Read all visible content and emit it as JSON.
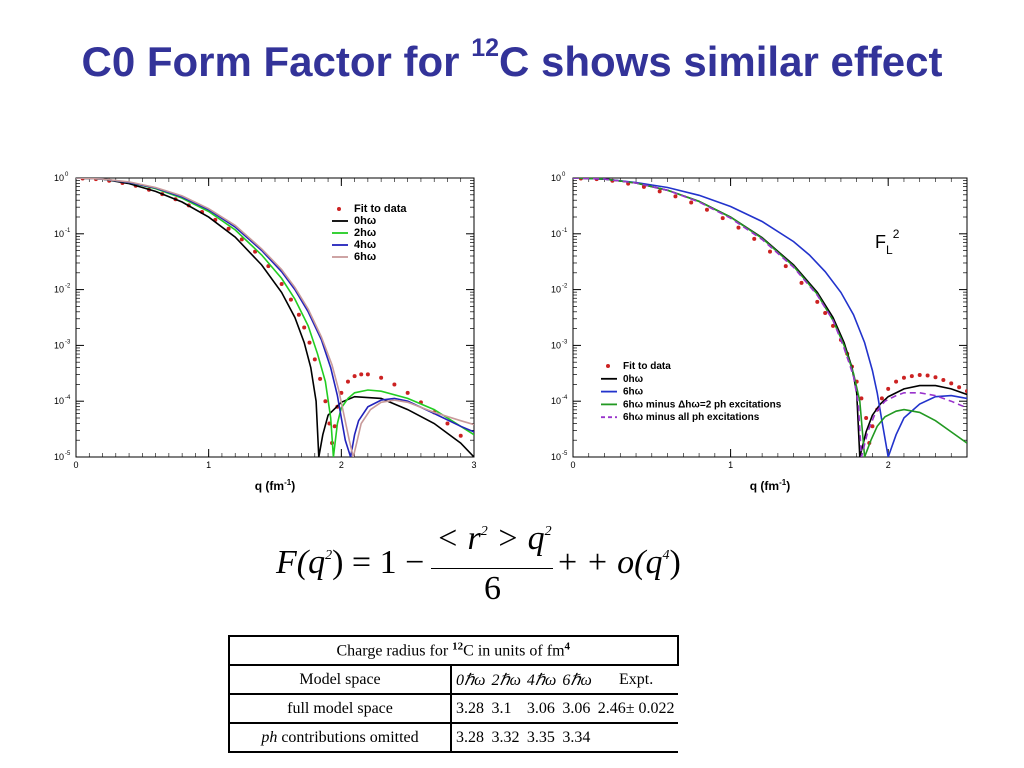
{
  "slide": {
    "title_main": "C0 Form Factor for ",
    "title_sup": "12",
    "title_rest": "C shows similar effect"
  },
  "colors": {
    "title": "#333399",
    "fit": "#cc2222",
    "0hw": "#000000",
    "2hw": "#22cc22",
    "4hw": "#2222bb",
    "6hw_left": "#c89a9a",
    "6hw_right": "#2233cc",
    "minus2": "#229922",
    "minusall": "#9933cc"
  },
  "chart_data": [
    {
      "type": "line",
      "xlabel": "q (fm",
      "xlabel_sup": "-1",
      "xlabel_end": ")",
      "ylabel": "",
      "xlim": [
        0,
        3
      ],
      "ylim_log10": [
        -5,
        0
      ],
      "y_scale": "log",
      "x_ticks": [
        "0",
        "1",
        "2",
        "3"
      ],
      "y_ticks": [
        "0",
        "-1",
        "-2",
        "-3",
        "-4",
        "-5"
      ],
      "y_tick_base": "10",
      "legend_position": "top-right",
      "legend": [
        "Fit to data",
        "0hω",
        "2hω",
        "4hω",
        "6hω"
      ],
      "series": [
        {
          "name": "Fit to data",
          "style": "dots",
          "color": "#cc2222",
          "x": [
            0.05,
            0.15,
            0.25,
            0.35,
            0.45,
            0.55,
            0.65,
            0.75,
            0.85,
            0.95,
            1.05,
            1.15,
            1.25,
            1.35,
            1.45,
            1.55,
            1.62,
            1.68,
            1.72,
            1.76,
            1.8,
            1.84,
            1.88,
            1.91,
            1.93,
            1.95,
            1.97,
            2.0,
            2.05,
            2.1,
            2.15,
            2.2,
            2.3,
            2.4,
            2.5,
            2.6,
            2.7,
            2.8,
            2.9
          ],
          "y": [
            -0.01,
            -0.02,
            -0.05,
            -0.09,
            -0.14,
            -0.21,
            -0.29,
            -0.38,
            -0.49,
            -0.61,
            -0.75,
            -0.91,
            -1.1,
            -1.32,
            -1.58,
            -1.9,
            -2.18,
            -2.45,
            -2.68,
            -2.95,
            -3.25,
            -3.6,
            -4.0,
            -4.4,
            -4.75,
            -4.45,
            -4.1,
            -3.85,
            -3.65,
            -3.55,
            -3.52,
            -3.52,
            -3.58,
            -3.7,
            -3.85,
            -4.02,
            -4.2,
            -4.4,
            -4.62
          ]
        },
        {
          "name": "0hω",
          "style": "line",
          "color": "#000000",
          "x": [
            0,
            0.2,
            0.4,
            0.6,
            0.8,
            1.0,
            1.2,
            1.4,
            1.55,
            1.65,
            1.72,
            1.77,
            1.81,
            1.83,
            1.86,
            1.9,
            2.0,
            2.1,
            2.3,
            2.5,
            2.7,
            2.9,
            3.0
          ],
          "y": [
            0,
            -0.02,
            -0.1,
            -0.24,
            -0.43,
            -0.7,
            -1.06,
            -1.56,
            -2.05,
            -2.5,
            -2.95,
            -3.4,
            -4.0,
            -5.0,
            -4.6,
            -4.25,
            -4.02,
            -3.92,
            -3.95,
            -4.15,
            -4.4,
            -4.75,
            -5.0
          ]
        },
        {
          "name": "2hω",
          "style": "line",
          "color": "#22cc22",
          "x": [
            0,
            0.2,
            0.4,
            0.6,
            0.8,
            1.0,
            1.2,
            1.4,
            1.55,
            1.65,
            1.75,
            1.82,
            1.88,
            1.92,
            1.94,
            1.97,
            2.0,
            2.05,
            2.1,
            2.2,
            2.3,
            2.5,
            2.7,
            2.9,
            3.0
          ],
          "y": [
            0,
            -0.02,
            -0.08,
            -0.19,
            -0.36,
            -0.6,
            -0.93,
            -1.38,
            -1.8,
            -2.17,
            -2.65,
            -3.15,
            -3.65,
            -4.3,
            -5.0,
            -4.4,
            -4.12,
            -3.95,
            -3.85,
            -3.8,
            -3.82,
            -3.95,
            -4.15,
            -4.45,
            -4.6
          ]
        },
        {
          "name": "4hω",
          "style": "line",
          "color": "#2222bb",
          "x": [
            0,
            0.2,
            0.4,
            0.6,
            0.8,
            1.0,
            1.2,
            1.4,
            1.55,
            1.65,
            1.75,
            1.85,
            1.92,
            1.97,
            2.0,
            2.03,
            2.07,
            2.1,
            2.13,
            2.2,
            2.3,
            2.4,
            2.5,
            2.7,
            2.9,
            3.0
          ],
          "y": [
            0,
            -0.02,
            -0.08,
            -0.18,
            -0.34,
            -0.57,
            -0.88,
            -1.3,
            -1.68,
            -2.0,
            -2.4,
            -2.9,
            -3.4,
            -3.9,
            -4.3,
            -4.7,
            -5.0,
            -4.6,
            -4.35,
            -4.1,
            -3.98,
            -3.95,
            -4.0,
            -4.22,
            -4.45,
            -4.55
          ]
        },
        {
          "name": "6hω",
          "style": "line",
          "color": "#c89a9a",
          "x": [
            0,
            0.2,
            0.4,
            0.6,
            0.8,
            1.0,
            1.2,
            1.4,
            1.55,
            1.65,
            1.75,
            1.85,
            1.93,
            1.98,
            2.02,
            2.06,
            2.09,
            2.12,
            2.15,
            2.22,
            2.3,
            2.4,
            2.5,
            2.7,
            2.9,
            3.0
          ],
          "y": [
            0,
            -0.02,
            -0.07,
            -0.17,
            -0.32,
            -0.55,
            -0.85,
            -1.27,
            -1.64,
            -1.96,
            -2.35,
            -2.85,
            -3.35,
            -3.8,
            -4.25,
            -4.7,
            -5.0,
            -4.7,
            -4.4,
            -4.15,
            -4.02,
            -3.98,
            -4.02,
            -4.2,
            -4.35,
            -4.42
          ]
        }
      ]
    },
    {
      "type": "line",
      "xlabel": "q (fm",
      "xlabel_sup": "-1",
      "xlabel_end": ")",
      "ylabel": "",
      "xlim": [
        0,
        2.5
      ],
      "ylim_log10": [
        -5,
        0
      ],
      "y_scale": "log",
      "x_ticks": [
        "0",
        "1",
        "2"
      ],
      "y_ticks": [
        "0",
        "-1",
        "-2",
        "-3",
        "-4",
        "-5"
      ],
      "y_tick_base": "10",
      "legend_position": "bottom-left",
      "annotation": "F",
      "annotation_sub": "L",
      "annotation_sup": "2",
      "legend": [
        "Fit to data",
        "0hω",
        "6hω",
        "6hω  minus Δhω=2 ph excitations",
        "6hω  minus all ph excitations"
      ],
      "series": [
        {
          "name": "Fit to data",
          "style": "dots",
          "color": "#cc2222",
          "x": [
            0.05,
            0.15,
            0.25,
            0.35,
            0.45,
            0.55,
            0.65,
            0.75,
            0.85,
            0.95,
            1.05,
            1.15,
            1.25,
            1.35,
            1.45,
            1.55,
            1.6,
            1.65,
            1.7,
            1.74,
            1.77,
            1.8,
            1.83,
            1.86,
            1.88,
            1.9,
            1.93,
            1.96,
            2.0,
            2.05,
            2.1,
            2.15,
            2.2,
            2.25,
            2.3,
            2.35,
            2.4,
            2.45,
            2.5
          ],
          "y": [
            -0.01,
            -0.02,
            -0.05,
            -0.1,
            -0.16,
            -0.24,
            -0.33,
            -0.44,
            -0.57,
            -0.72,
            -0.89,
            -1.09,
            -1.32,
            -1.58,
            -1.88,
            -2.22,
            -2.42,
            -2.65,
            -2.9,
            -3.15,
            -3.38,
            -3.65,
            -3.95,
            -4.3,
            -4.75,
            -4.45,
            -4.15,
            -3.95,
            -3.78,
            -3.65,
            -3.58,
            -3.55,
            -3.53,
            -3.54,
            -3.57,
            -3.62,
            -3.68,
            -3.75,
            -3.82
          ]
        },
        {
          "name": "0hω",
          "style": "line",
          "color": "#000000",
          "x": [
            0,
            0.2,
            0.4,
            0.6,
            0.8,
            1.0,
            1.2,
            1.4,
            1.55,
            1.65,
            1.72,
            1.77,
            1.8,
            1.82,
            1.86,
            1.9,
            1.95,
            2.0,
            2.1,
            2.2,
            2.3,
            2.4,
            2.5
          ],
          "y": [
            0,
            -0.02,
            -0.09,
            -0.22,
            -0.42,
            -0.7,
            -1.07,
            -1.56,
            -2.05,
            -2.5,
            -2.95,
            -3.4,
            -3.85,
            -5.0,
            -4.55,
            -4.25,
            -4.05,
            -3.92,
            -3.78,
            -3.72,
            -3.72,
            -3.78,
            -3.88
          ]
        },
        {
          "name": "6hω",
          "style": "line",
          "color": "#2233cc",
          "x": [
            0,
            0.2,
            0.4,
            0.6,
            0.8,
            1.0,
            1.2,
            1.4,
            1.5,
            1.6,
            1.7,
            1.78,
            1.85,
            1.9,
            1.93,
            1.96,
            2.0,
            2.05,
            2.1,
            2.2,
            2.3,
            2.4,
            2.5
          ],
          "y": [
            0,
            -0.02,
            -0.08,
            -0.17,
            -0.31,
            -0.51,
            -0.78,
            -1.14,
            -1.38,
            -1.68,
            -2.05,
            -2.45,
            -2.95,
            -3.45,
            -3.85,
            -4.35,
            -5.0,
            -4.6,
            -4.3,
            -4.05,
            -3.92,
            -3.9,
            -3.95
          ]
        },
        {
          "name": "6hω  minus Δhω=2 ph excitations",
          "style": "line",
          "color": "#229922",
          "x": [
            0,
            0.2,
            0.4,
            0.6,
            0.8,
            1.0,
            1.2,
            1.4,
            1.55,
            1.65,
            1.72,
            1.78,
            1.82,
            1.85,
            1.89,
            1.93,
            1.98,
            2.05,
            2.1,
            2.2,
            2.3,
            2.4,
            2.5
          ],
          "y": [
            0,
            -0.02,
            -0.09,
            -0.22,
            -0.42,
            -0.7,
            -1.08,
            -1.58,
            -2.08,
            -2.55,
            -3.0,
            -3.5,
            -4.0,
            -5.0,
            -4.7,
            -4.45,
            -4.28,
            -4.18,
            -4.15,
            -4.2,
            -4.35,
            -4.55,
            -4.75
          ]
        },
        {
          "name": "6hω  minus all ph excitations",
          "style": "dashed",
          "color": "#9933cc",
          "x": [
            0,
            0.2,
            0.4,
            0.6,
            0.8,
            1.0,
            1.2,
            1.4,
            1.55,
            1.65,
            1.72,
            1.78,
            1.81,
            1.83,
            1.87,
            1.92,
            1.98,
            2.05,
            2.1,
            2.2,
            2.3,
            2.4,
            2.5
          ],
          "y": [
            0,
            -0.02,
            -0.09,
            -0.22,
            -0.43,
            -0.72,
            -1.1,
            -1.6,
            -2.1,
            -2.55,
            -3.05,
            -3.55,
            -4.05,
            -5.0,
            -4.55,
            -4.2,
            -4.0,
            -3.9,
            -3.85,
            -3.85,
            -3.9,
            -4.0,
            -4.12
          ]
        }
      ]
    }
  ],
  "formula": {
    "lhs": "F(q",
    "lhs_sup": "2",
    "lhs_end": ") = 1 −",
    "num_a": "< r",
    "num_sup1": "2",
    "num_b": " > q",
    "num_sup2": "2",
    "den": "6",
    "rhs": "+ o(q",
    "rhs_sup": "4",
    "rhs_end": ")"
  },
  "table": {
    "caption_a": "Charge radius for ",
    "caption_sup": "12",
    "caption_b": "C in units of fm",
    "caption_sup2": "4",
    "header": [
      "Model space",
      "0ℏω",
      "2ℏω",
      "4ℏω",
      "6ℏω",
      "Expt."
    ],
    "rows": [
      {
        "label": "full model space",
        "label_it": "",
        "values": [
          "3.28",
          "3.1",
          "3.06",
          "3.06",
          "2.46± 0.022"
        ]
      },
      {
        "label": " contributions omitted",
        "label_it": "ph",
        "values": [
          "3.28",
          "3.32",
          "3.35",
          "3.34",
          ""
        ]
      }
    ]
  }
}
